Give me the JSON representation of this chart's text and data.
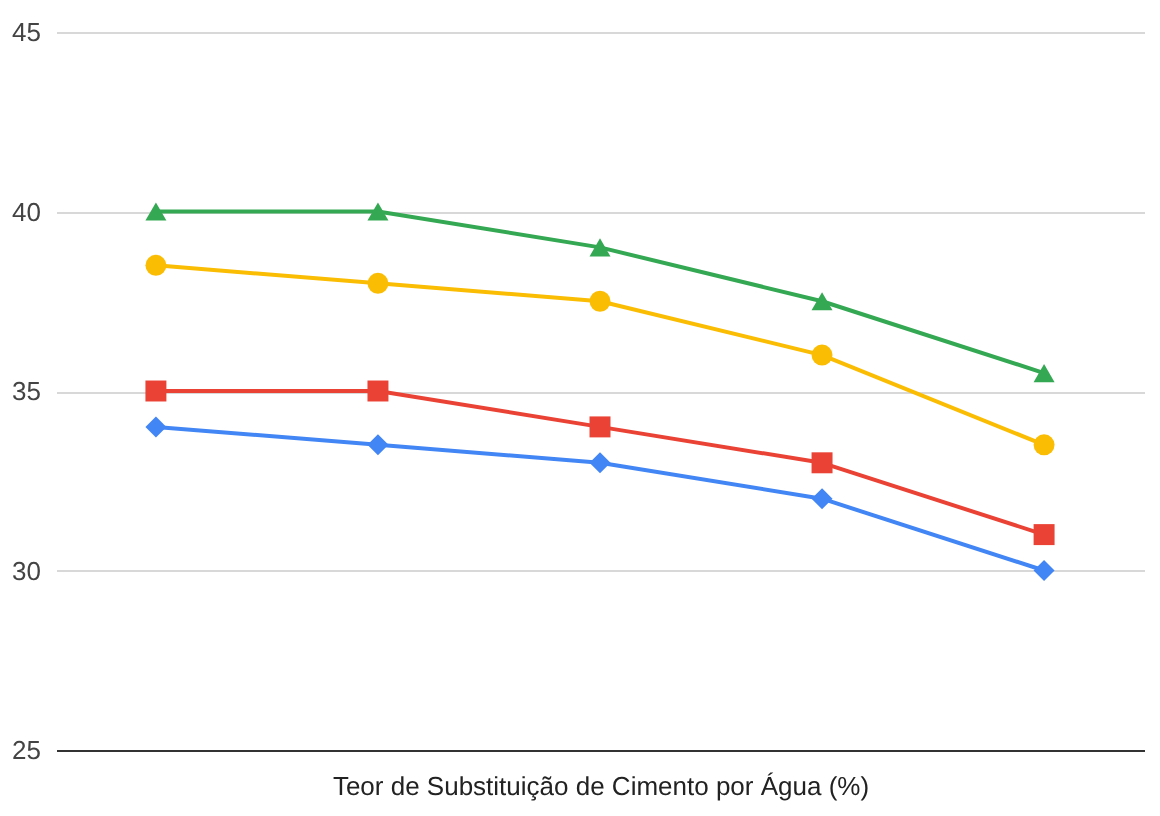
{
  "chart_data": {
    "type": "line",
    "xlabel": "Teor de Substituição de Cimento por Água (%)",
    "categories": [
      null,
      null,
      null,
      null,
      null
    ],
    "ylim": [
      25,
      45
    ],
    "yticks": [
      25,
      30,
      35,
      40,
      45
    ],
    "grid": "y",
    "line_style": "solid",
    "tick_labels": "y",
    "series": [
      {
        "color": "#4285f4",
        "marker": "diamond",
        "values": [
          34,
          33.5,
          33,
          32,
          30
        ]
      },
      {
        "color": "#ea4335",
        "marker": "square",
        "values": [
          35,
          35,
          34,
          33,
          31
        ]
      },
      {
        "color": "#fbbc04",
        "marker": "circle",
        "values": [
          38.5,
          38,
          37.5,
          36,
          33.5
        ]
      },
      {
        "color": "#34a853",
        "marker": "triangle",
        "values": [
          40,
          40,
          39,
          37.5,
          35.5
        ]
      }
    ]
  }
}
